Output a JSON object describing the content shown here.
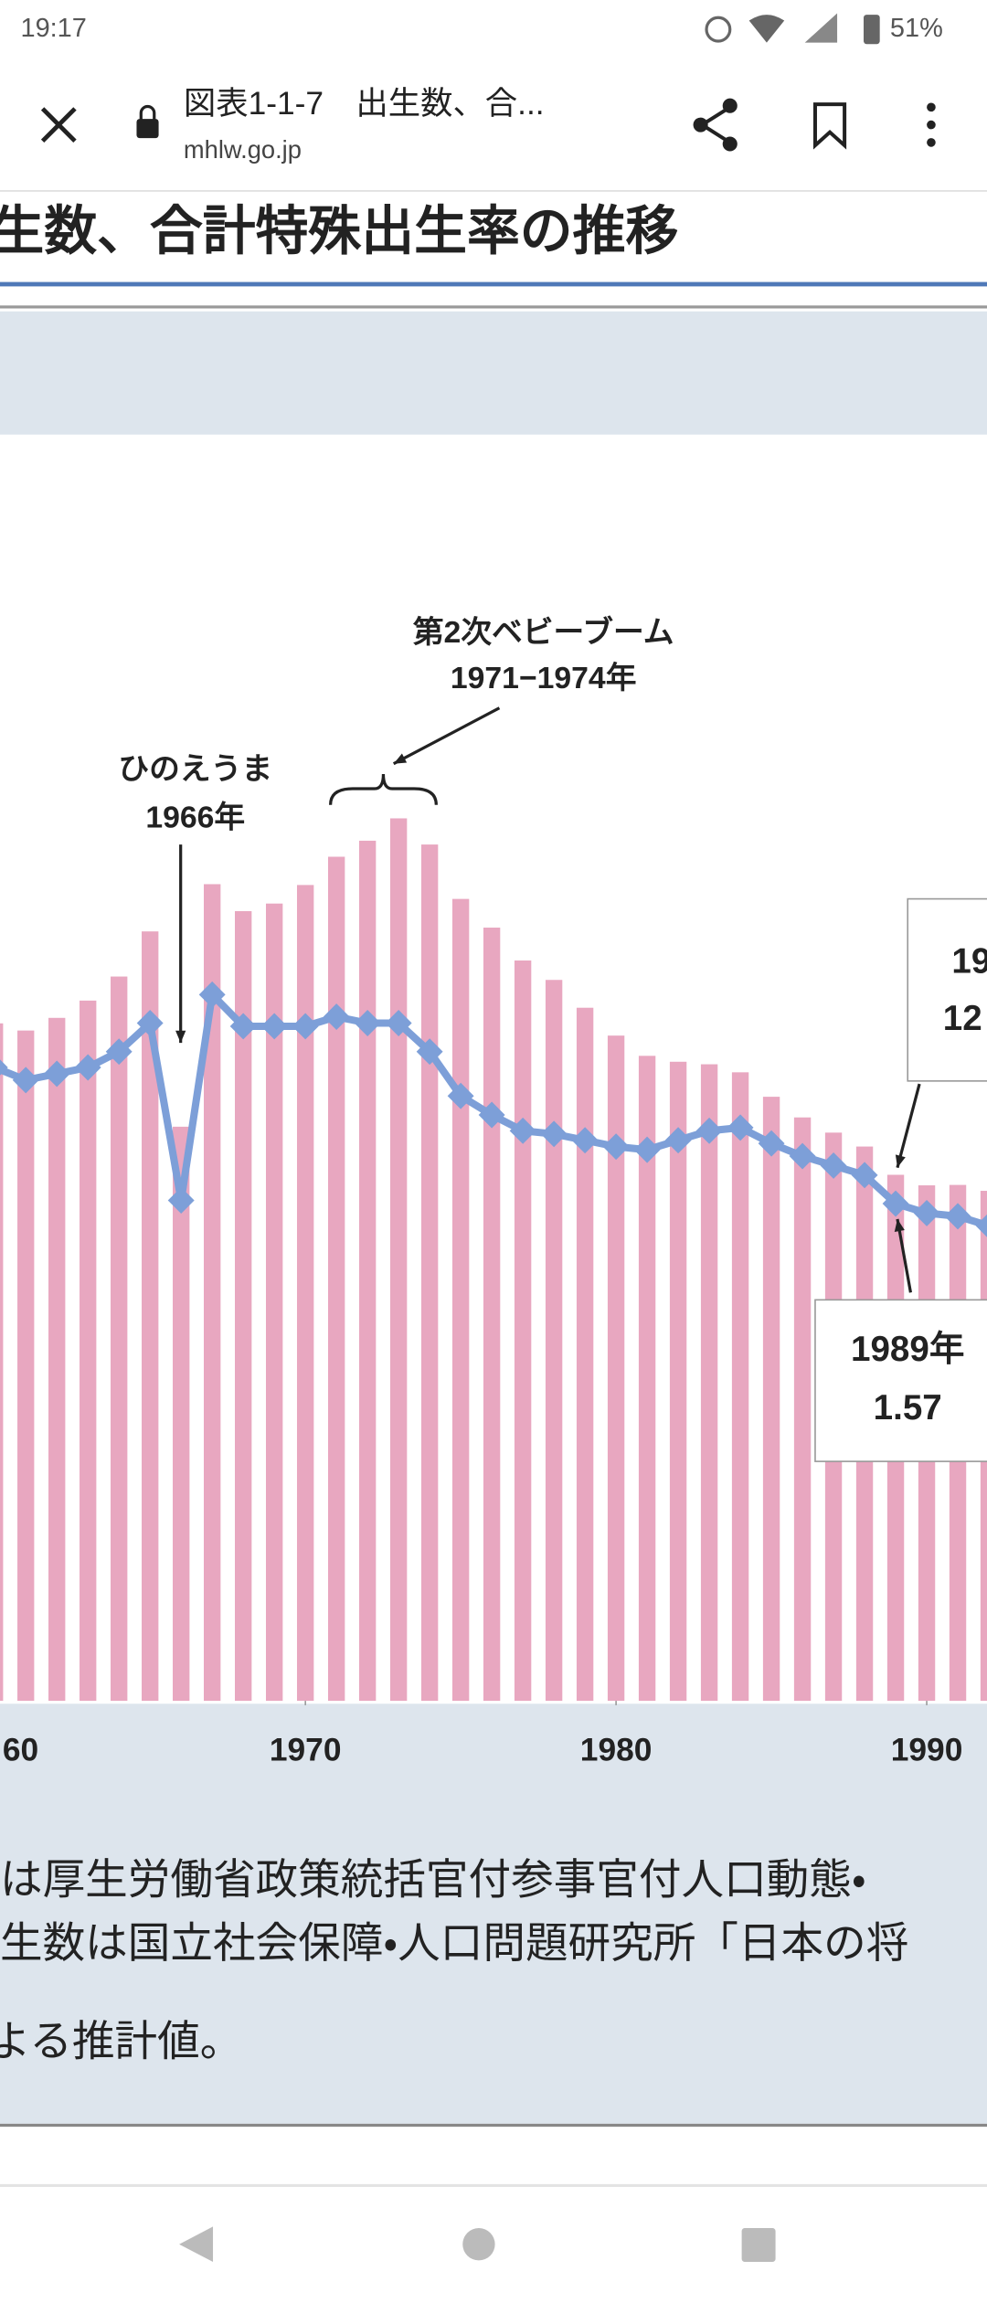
{
  "status_bar": {
    "time": "19:17",
    "battery": "51%"
  },
  "toolbar": {
    "title": "図表1-1-7　出生数、合...",
    "domain": "mhlw.go.jp"
  },
  "page": {
    "heading": "生数、合計特殊出生率の推移",
    "notes": [
      "は厚生労働省政策統括官付参事官付人口動態・",
      "生数は国立社会保障・人口問題研究所「日本の将",
      "よる推計値。"
    ]
  },
  "chart_data": {
    "type": "bar",
    "x": [
      1960,
      1961,
      1962,
      1963,
      1964,
      1965,
      1966,
      1967,
      1968,
      1969,
      1970,
      1971,
      1972,
      1973,
      1974,
      1975,
      1976,
      1977,
      1978,
      1979,
      1980,
      1981,
      1982,
      1983,
      1984,
      1985,
      1986,
      1987,
      1988,
      1989,
      1990,
      1991,
      1992
    ],
    "xlim": [
      1960.17,
      1991.94
    ],
    "xticks": [
      {
        "value": 1960,
        "label": "60"
      },
      1970,
      1980,
      1990
    ],
    "ylim": [
      0,
      2500
    ],
    "y2lim": [
      0,
      3.33
    ],
    "series": [
      {
        "color": "#e8a7c0",
        "values": [
          1606,
          1589,
          1619,
          1660,
          1717,
          1824,
          1361,
          1936,
          1872,
          1890,
          1934,
          2001,
          2039,
          2092,
          2030,
          1901,
          1833,
          1755,
          1709,
          1643,
          1577,
          1529,
          1515,
          1509,
          1490,
          1432,
          1383,
          1347,
          1314,
          1247,
          1222,
          1223,
          1209
        ]
      },
      {
        "type": "line",
        "axis": "y2",
        "color": "#7d9fd8",
        "values": [
          2.0,
          1.96,
          1.98,
          2.0,
          2.05,
          2.14,
          1.58,
          2.23,
          2.13,
          2.13,
          2.13,
          2.16,
          2.14,
          2.14,
          2.05,
          1.91,
          1.85,
          1.8,
          1.79,
          1.77,
          1.75,
          1.74,
          1.77,
          1.8,
          1.81,
          1.76,
          1.72,
          1.69,
          1.66,
          1.57,
          1.54,
          1.53,
          1.5
        ]
      }
    ],
    "annotations": [
      "第2次ベビーブーム",
      "1971−1974年",
      "ひのえうま",
      "1966年",
      "19",
      "12",
      "1989年",
      "1.57"
    ]
  }
}
